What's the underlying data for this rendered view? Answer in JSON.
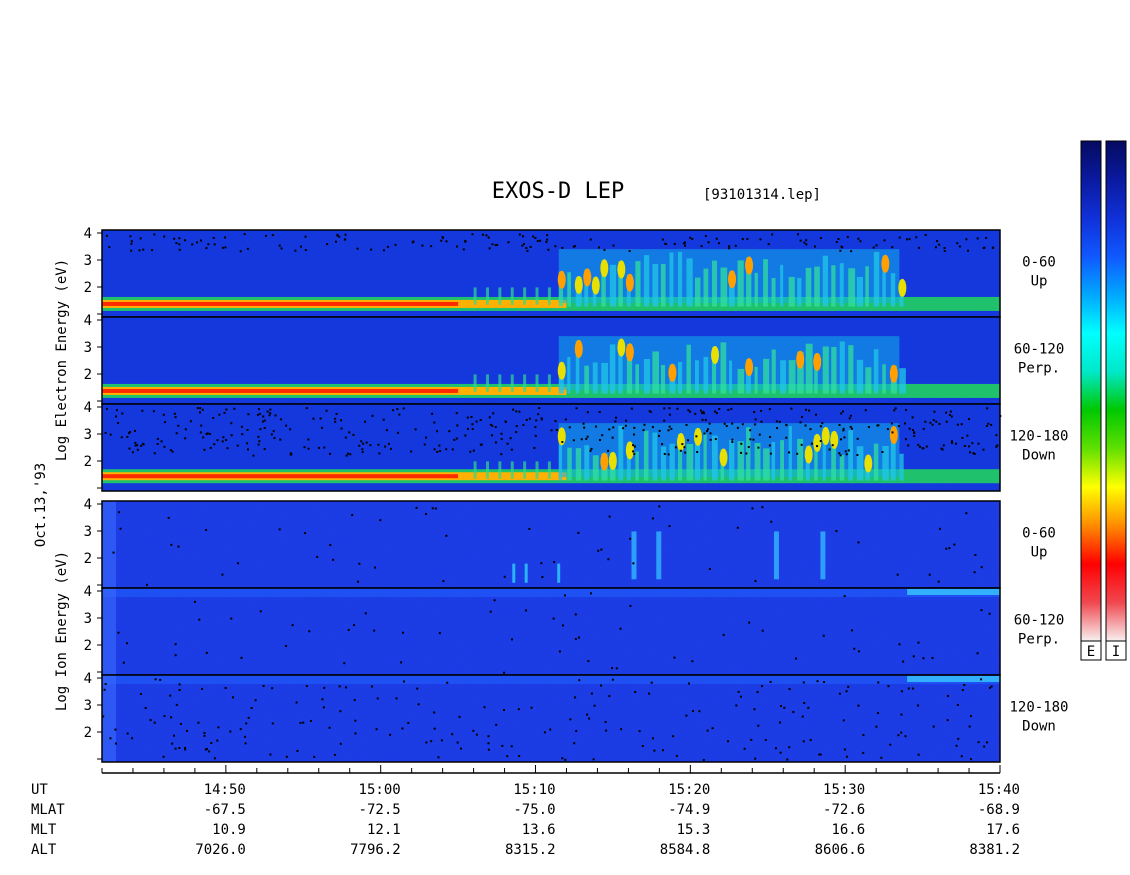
{
  "title": "EXOS-D LEP",
  "file_tag": "[93101314.lep]",
  "date_label": "Oct.13,'93",
  "colorbars": [
    {
      "label": "E"
    },
    {
      "label": "I"
    }
  ],
  "colormap": [
    "#f8f0f0",
    "#f04850",
    "#ff0000",
    "#ff8c00",
    "#ffff00",
    "#60e000",
    "#00c800",
    "#00e8c8",
    "#00ffff",
    "#00a8ff",
    "#1058ff",
    "#1030d8",
    "#0a1aa0",
    "#050a60"
  ],
  "chart_data": {
    "type": "heatmap",
    "x_axis": {
      "label": "UT",
      "range": [
        "14:42",
        "15:40"
      ],
      "major_ticks": [
        "14:50",
        "15:00",
        "15:10",
        "15:20",
        "15:30",
        "15:40"
      ],
      "minor_tick_interval_min": 2
    },
    "ephemeris": [
      {
        "name": "MLAT",
        "values": [
          "-67.5",
          "-72.5",
          "-75.0",
          "-74.9",
          "-72.6",
          "-68.9"
        ]
      },
      {
        "name": "MLT",
        "values": [
          "10.9",
          "12.1",
          "13.6",
          "15.3",
          "16.6",
          "17.6"
        ]
      },
      {
        "name": "ALT",
        "values": [
          "7026.0",
          "7796.2",
          "8315.2",
          "8584.8",
          "8606.6",
          "8381.2"
        ]
      }
    ],
    "y_ticks": [
      "1",
      "2",
      "3",
      "4"
    ],
    "panels": [
      {
        "group": "electron",
        "ylabel": "Log Electron Energy (eV)",
        "ylim": [
          1,
          4
        ],
        "subpanels": [
          {
            "angle": "0-60",
            "direction": "Up"
          },
          {
            "angle": "60-120",
            "direction": "Perp."
          },
          {
            "angle": "120-180",
            "direction": "Down"
          }
        ]
      },
      {
        "group": "ion",
        "ylabel": "Log Ion Energy (eV)",
        "ylim": [
          1,
          4
        ],
        "subpanels": [
          {
            "angle": "0-60",
            "direction": "Up"
          },
          {
            "angle": "60-120",
            "direction": "Perp."
          },
          {
            "angle": "120-180",
            "direction": "Down"
          }
        ]
      }
    ]
  }
}
